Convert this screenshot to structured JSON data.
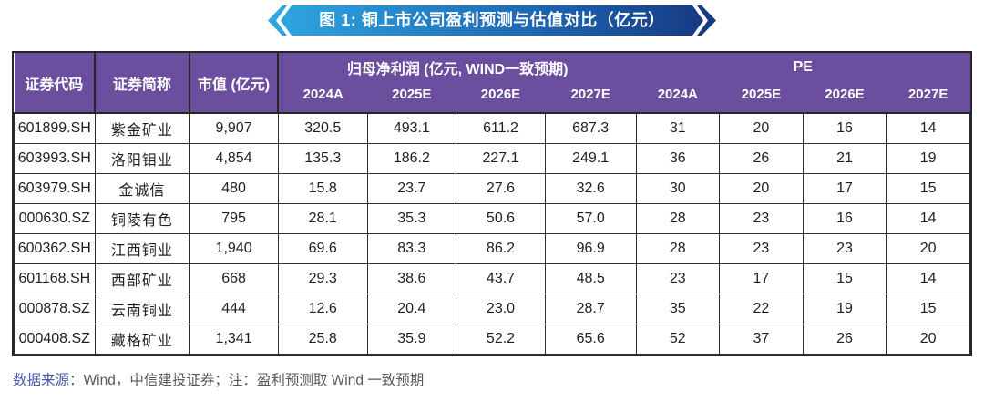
{
  "banner": {
    "title": "图 1: 铜上市公司盈利预测与估值对比（亿元）",
    "gradient_start": "#2FA8E1",
    "gradient_mid": "#1E6CB8",
    "gradient_end": "#16377F"
  },
  "table": {
    "headers": {
      "code": "证券代码",
      "name": "证券简称",
      "market_cap": "市值 (亿元)",
      "profit_group": "归母净利润 (亿元, WIND一致预期)",
      "pe_group": "PE",
      "profit_years": [
        "2024A",
        "2025E",
        "2026E",
        "2027E"
      ],
      "pe_years": [
        "2024A",
        "2025E",
        "2026E",
        "2027E"
      ]
    },
    "rows": [
      {
        "code": "601899.SH",
        "name": "紫金矿业",
        "market_cap": "9,907",
        "profit": [
          "320.5",
          "493.1",
          "611.2",
          "687.3"
        ],
        "pe": [
          "31",
          "20",
          "16",
          "14"
        ]
      },
      {
        "code": "603993.SH",
        "name": "洛阳钼业",
        "market_cap": "4,854",
        "profit": [
          "135.3",
          "186.2",
          "227.1",
          "249.1"
        ],
        "pe": [
          "36",
          "26",
          "21",
          "19"
        ]
      },
      {
        "code": "603979.SH",
        "name": "金诚信",
        "market_cap": "480",
        "profit": [
          "15.8",
          "23.7",
          "27.6",
          "32.6"
        ],
        "pe": [
          "30",
          "20",
          "17",
          "15"
        ]
      },
      {
        "code": "000630.SZ",
        "name": "铜陵有色",
        "market_cap": "795",
        "profit": [
          "28.1",
          "35.3",
          "50.6",
          "57.0"
        ],
        "pe": [
          "28",
          "23",
          "16",
          "14"
        ]
      },
      {
        "code": "600362.SH",
        "name": "江西铜业",
        "market_cap": "1,940",
        "profit": [
          "69.6",
          "83.3",
          "86.2",
          "96.9"
        ],
        "pe": [
          "28",
          "23",
          "23",
          "20"
        ]
      },
      {
        "code": "601168.SH",
        "name": "西部矿业",
        "market_cap": "668",
        "profit": [
          "29.3",
          "38.6",
          "43.7",
          "48.5"
        ],
        "pe": [
          "23",
          "17",
          "15",
          "14"
        ]
      },
      {
        "code": "000878.SZ",
        "name": "云南铜业",
        "market_cap": "444",
        "profit": [
          "12.6",
          "20.4",
          "23.0",
          "28.7"
        ],
        "pe": [
          "35",
          "22",
          "19",
          "15"
        ]
      },
      {
        "code": "000408.SZ",
        "name": "藏格矿业",
        "market_cap": "1,341",
        "profit": [
          "25.8",
          "35.9",
          "52.2",
          "65.6"
        ],
        "pe": [
          "52",
          "37",
          "26",
          "20"
        ]
      }
    ]
  },
  "footer": {
    "source_label": "数据来源",
    "source_text": "：Wind，中信建投证券；注：盈利预测取 Wind 一致预期"
  },
  "colors": {
    "header_bg": "#6B4F9E",
    "header_text": "#FFFFFF",
    "border": "#262626",
    "cell_text": "#1F1F1F",
    "footer_label": "#4A55A8",
    "footer_text": "#595959"
  }
}
